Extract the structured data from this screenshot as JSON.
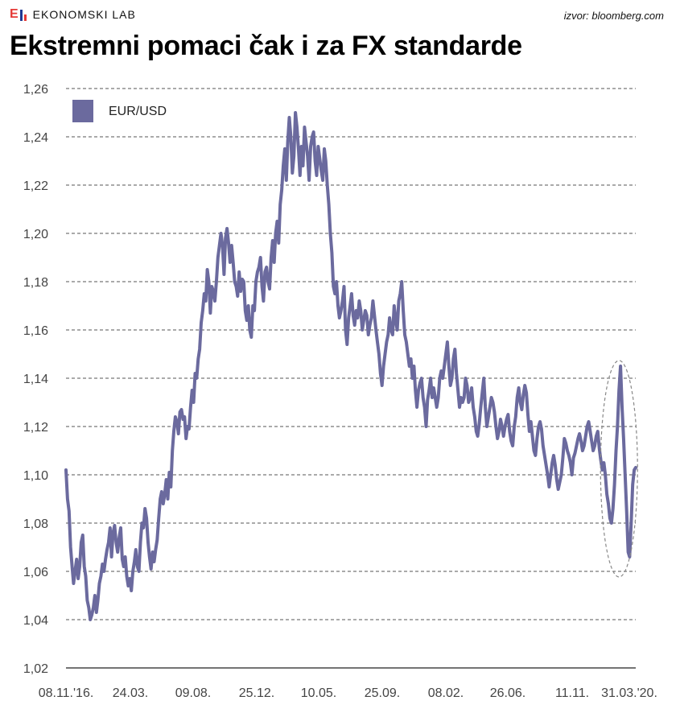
{
  "header": {
    "brand": "EKONOMSKI LAB",
    "source": "izvor: bloomberg.com",
    "title": "Ekstremni pomaci čak i za FX standarde"
  },
  "colors": {
    "line": "#6b6a9e",
    "legend_swatch": "#6b6a9e",
    "grid": "#555555",
    "highlight_ellipse": "#888888",
    "brand_red": "#e53935",
    "brand_blue": "#1f3a93"
  },
  "chart_data": {
    "type": "line",
    "title": "Ekstremni pomaci čak i za FX standarde",
    "xlabel": "",
    "ylabel": "",
    "ylim": [
      1.02,
      1.26
    ],
    "yticks": [
      "1,02",
      "1,04",
      "1,06",
      "1,08",
      "1,10",
      "1,12",
      "1,14",
      "1,16",
      "1,18",
      "1,20",
      "1,22",
      "1,24",
      "1,26"
    ],
    "xticks": [
      "08.11.'16.",
      "24.03.",
      "09.08.",
      "25.12.",
      "10.05.",
      "25.09.",
      "08.02.",
      "26.06.",
      "11.11.",
      "31.03.'20."
    ],
    "grid": "horizontal dashed",
    "legend": "top-left",
    "annotation": "dashed ellipse around final extreme swings",
    "series": [
      {
        "name": "EUR/USD",
        "values": [
          1.102,
          1.09,
          1.085,
          1.07,
          1.062,
          1.055,
          1.06,
          1.065,
          1.057,
          1.062,
          1.072,
          1.075,
          1.062,
          1.058,
          1.048,
          1.045,
          1.04,
          1.042,
          1.045,
          1.05,
          1.043,
          1.048,
          1.055,
          1.058,
          1.063,
          1.06,
          1.065,
          1.069,
          1.072,
          1.078,
          1.066,
          1.076,
          1.079,
          1.072,
          1.068,
          1.074,
          1.078,
          1.065,
          1.062,
          1.066,
          1.058,
          1.054,
          1.057,
          1.052,
          1.06,
          1.064,
          1.069,
          1.062,
          1.06,
          1.072,
          1.08,
          1.078,
          1.086,
          1.082,
          1.072,
          1.066,
          1.061,
          1.068,
          1.064,
          1.069,
          1.073,
          1.082,
          1.09,
          1.093,
          1.088,
          1.092,
          1.098,
          1.09,
          1.101,
          1.095,
          1.11,
          1.118,
          1.124,
          1.122,
          1.117,
          1.126,
          1.127,
          1.123,
          1.124,
          1.115,
          1.12,
          1.119,
          1.128,
          1.135,
          1.13,
          1.142,
          1.14,
          1.148,
          1.152,
          1.163,
          1.168,
          1.175,
          1.172,
          1.185,
          1.18,
          1.167,
          1.178,
          1.176,
          1.172,
          1.18,
          1.19,
          1.195,
          1.2,
          1.195,
          1.183,
          1.198,
          1.202,
          1.196,
          1.188,
          1.195,
          1.188,
          1.18,
          1.178,
          1.174,
          1.184,
          1.176,
          1.181,
          1.18,
          1.168,
          1.164,
          1.17,
          1.16,
          1.157,
          1.17,
          1.168,
          1.18,
          1.184,
          1.186,
          1.19,
          1.178,
          1.172,
          1.184,
          1.186,
          1.18,
          1.177,
          1.19,
          1.197,
          1.188,
          1.2,
          1.205,
          1.196,
          1.212,
          1.218,
          1.228,
          1.235,
          1.222,
          1.238,
          1.248,
          1.24,
          1.225,
          1.232,
          1.25,
          1.244,
          1.235,
          1.224,
          1.236,
          1.228,
          1.244,
          1.238,
          1.232,
          1.222,
          1.236,
          1.24,
          1.242,
          1.23,
          1.224,
          1.236,
          1.231,
          1.226,
          1.222,
          1.235,
          1.23,
          1.22,
          1.212,
          1.2,
          1.192,
          1.178,
          1.175,
          1.18,
          1.17,
          1.165,
          1.168,
          1.172,
          1.178,
          1.16,
          1.154,
          1.165,
          1.17,
          1.175,
          1.166,
          1.162,
          1.168,
          1.165,
          1.172,
          1.168,
          1.16,
          1.164,
          1.168,
          1.166,
          1.158,
          1.162,
          1.165,
          1.172,
          1.166,
          1.16,
          1.155,
          1.15,
          1.142,
          1.137,
          1.145,
          1.15,
          1.155,
          1.158,
          1.165,
          1.16,
          1.158,
          1.17,
          1.164,
          1.16,
          1.172,
          1.175,
          1.18,
          1.168,
          1.158,
          1.155,
          1.15,
          1.145,
          1.148,
          1.14,
          1.145,
          1.135,
          1.128,
          1.135,
          1.138,
          1.14,
          1.132,
          1.128,
          1.12,
          1.131,
          1.135,
          1.14,
          1.132,
          1.136,
          1.132,
          1.128,
          1.132,
          1.14,
          1.143,
          1.14,
          1.145,
          1.15,
          1.155,
          1.145,
          1.137,
          1.14,
          1.148,
          1.152,
          1.142,
          1.135,
          1.128,
          1.132,
          1.13,
          1.132,
          1.14,
          1.137,
          1.13,
          1.132,
          1.136,
          1.128,
          1.124,
          1.118,
          1.116,
          1.121,
          1.128,
          1.134,
          1.14,
          1.128,
          1.12,
          1.124,
          1.128,
          1.132,
          1.13,
          1.126,
          1.12,
          1.115,
          1.118,
          1.123,
          1.12,
          1.116,
          1.12,
          1.123,
          1.125,
          1.118,
          1.114,
          1.112,
          1.12,
          1.124,
          1.132,
          1.136,
          1.13,
          1.127,
          1.133,
          1.137,
          1.134,
          1.125,
          1.118,
          1.122,
          1.116,
          1.11,
          1.108,
          1.115,
          1.12,
          1.122,
          1.119,
          1.112,
          1.108,
          1.104,
          1.1,
          1.095,
          1.1,
          1.105,
          1.108,
          1.104,
          1.098,
          1.094,
          1.097,
          1.1,
          1.107,
          1.115,
          1.113,
          1.11,
          1.108,
          1.105,
          1.1,
          1.107,
          1.109,
          1.112,
          1.115,
          1.117,
          1.114,
          1.11,
          1.112,
          1.116,
          1.12,
          1.122,
          1.118,
          1.114,
          1.11,
          1.112,
          1.116,
          1.118,
          1.111,
          1.106,
          1.102,
          1.105,
          1.1,
          1.092,
          1.088,
          1.082,
          1.08,
          1.086,
          1.096,
          1.11,
          1.12,
          1.135,
          1.145,
          1.128,
          1.115,
          1.1,
          1.085,
          1.068,
          1.066,
          1.08,
          1.096,
          1.102,
          1.103
        ]
      }
    ]
  }
}
